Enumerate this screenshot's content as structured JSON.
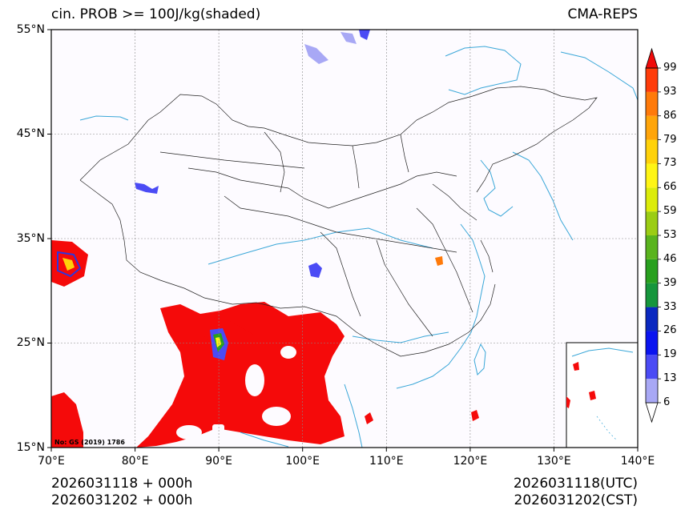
{
  "header": {
    "title": "cin. PROB >= 100J/kg(shaded)",
    "model": "CMA-REPS"
  },
  "map": {
    "lon_range": [
      70,
      140
    ],
    "lat_range": [
      15,
      55
    ],
    "lat_ticks": [
      {
        "lat": 55,
        "label": "55°N"
      },
      {
        "lat": 45,
        "label": "45°N"
      },
      {
        "lat": 35,
        "label": "35°N"
      },
      {
        "lat": 25,
        "label": "25°N"
      },
      {
        "lat": 15,
        "label": "15°N"
      }
    ],
    "lon_ticks": [
      {
        "lon": 70,
        "label": "70°E"
      },
      {
        "lon": 80,
        "label": "80°E"
      },
      {
        "lon": 90,
        "label": "90°E"
      },
      {
        "lon": 100,
        "label": "100°E"
      },
      {
        "lon": 110,
        "label": "110°E"
      },
      {
        "lon": 120,
        "label": "120°E"
      },
      {
        "lon": 130,
        "label": "130°E"
      },
      {
        "lon": 140,
        "label": "140°E"
      }
    ],
    "gridlines": true,
    "review_number": "No: GS (2019) 1786",
    "inset": "South China Sea",
    "colors": {
      "max_shade": "#f50a0a",
      "rivers": "#3aa7d8",
      "boundaries": "#222222"
    }
  },
  "colorbar": {
    "levels": [
      "6",
      "13",
      "19",
      "26",
      "33",
      "39",
      "46",
      "53",
      "59",
      "66",
      "73",
      "79",
      "86",
      "93",
      "99"
    ],
    "colors": [
      "#ffffff",
      "#a8a8f5",
      "#4b4bf5",
      "#0a14f0",
      "#0a28c0",
      "#16963c",
      "#28a01e",
      "#5ab41e",
      "#9bcd14",
      "#dcec0a",
      "#fff514",
      "#ffd20a",
      "#ffa50a",
      "#ff7a0a",
      "#ff3c0a",
      "#f00a0a"
    ]
  },
  "footer": {
    "init_line1": "2026031118  +  000h",
    "init_line2": "2026031202  +  000h",
    "valid_utc": "2026031118(UTC)",
    "valid_cst": "2026031202(CST)"
  }
}
